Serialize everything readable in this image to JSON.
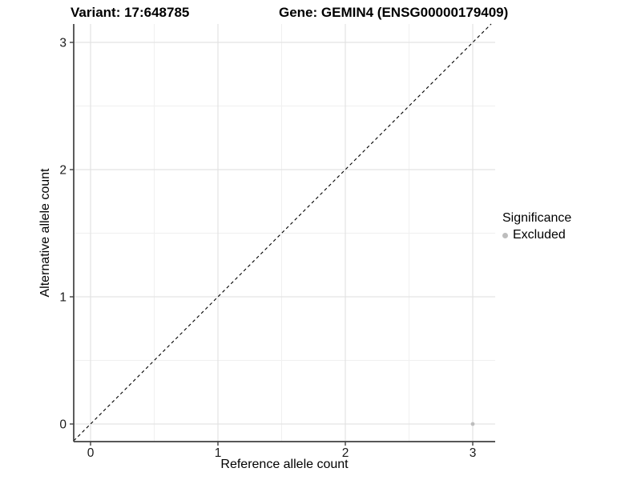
{
  "figure": {
    "title_left": "Variant: 17:648785",
    "title_right": "Gene: GEMIN4 (ENSG00000179409)"
  },
  "chart_data": {
    "type": "scatter",
    "title": "Variant: 17:648785   Gene: GEMIN4 (ENSG00000179409)",
    "xlabel": "Reference allele count",
    "ylabel": "Alternative allele count",
    "xlim": [
      -0.15,
      3.15
    ],
    "ylim": [
      -0.15,
      3.15
    ],
    "x_ticks": [
      0,
      1,
      2,
      3
    ],
    "y_ticks": [
      0,
      1,
      2,
      3
    ],
    "x_minor_ticks": [
      0.5,
      1.5,
      2.5
    ],
    "y_minor_ticks": [
      0.5,
      1.5,
      2.5
    ],
    "grid": "major+minor",
    "series": [
      {
        "name": "Excluded",
        "marker": "circle",
        "color": "#bdbdbd",
        "points": [
          {
            "x": 3,
            "y": 0
          }
        ]
      }
    ],
    "reference_line": {
      "equation": "y = x",
      "style": "dashed",
      "color": "#000000"
    },
    "legend": {
      "title": "Significance",
      "position": "right",
      "entries": [
        {
          "label": "Excluded",
          "color": "#bdbdbd",
          "marker": "circle"
        }
      ]
    }
  },
  "colors": {
    "background": "#ffffff",
    "grid_major": "#e3e3e3",
    "grid_minor": "#f0f0f0",
    "axis_line": "#404040",
    "tick_mark": "#404040",
    "tick_label": "#1a1a1a",
    "point": "#bdbdbd",
    "dashed_line": "#000000",
    "text": "#000000"
  }
}
